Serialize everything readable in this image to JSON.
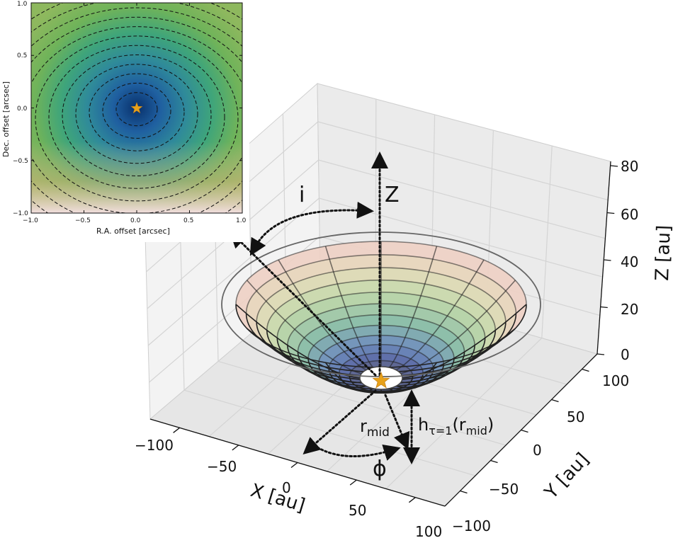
{
  "inset": {
    "xlabel": "R.A. offset [arcsec]",
    "ylabel": "Dec. offset [arcsec]",
    "xticks": [
      "−1.0",
      "−0.5",
      "0.0",
      "0.5",
      "1.0"
    ],
    "yticks": [
      "1.0",
      "0.5",
      "0.0",
      "−0.5",
      "−1.0"
    ],
    "colormap": [
      "#08306b",
      "#1f5fa0",
      "#2f8a9a",
      "#3fa57a",
      "#6fb35a",
      "#a7b866",
      "#d9b89a",
      "#f1dede"
    ]
  },
  "axes3d": {
    "x_label": "X [au]",
    "y_label": "Y [au]",
    "z_label": "Z [au]",
    "x_ticks": [
      "−100",
      "−50",
      "0",
      "50",
      "100"
    ],
    "y_ticks": [
      "−100",
      "−50",
      "0",
      "50",
      "100"
    ],
    "z_ticks": [
      "0",
      "20",
      "40",
      "60",
      "80"
    ]
  },
  "annotations": {
    "z_axis": "Z",
    "inclination": "i",
    "azimuth": "ϕ",
    "r_mid_main": "r",
    "r_mid_sub": "mid",
    "h_main": "h",
    "h_sub": "τ=1",
    "h_arg_open": "(r",
    "h_arg_sub": "mid",
    "h_arg_close": ")"
  },
  "colors": {
    "star": "#e8a21a",
    "pane": "#f2f2f2",
    "grid": "#d4d4d4",
    "mesh": "#222222",
    "surface_outer": "#f0d2c4",
    "surface_inner": "#3d4f9f"
  }
}
